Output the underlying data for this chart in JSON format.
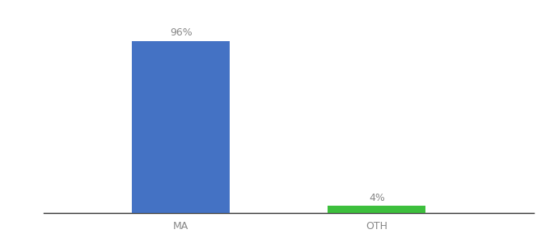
{
  "categories": [
    "MA",
    "OTH"
  ],
  "values": [
    96,
    4
  ],
  "bar_colors": [
    "#4472c4",
    "#3dbf3d"
  ],
  "bar_width": 0.5,
  "ylim": [
    0,
    108
  ],
  "label_fontsize": 9,
  "tick_fontsize": 9,
  "background_color": "#ffffff",
  "label_color": "#888888",
  "tick_color": "#888888",
  "positions": [
    1,
    2
  ],
  "xlim": [
    0.3,
    2.8
  ]
}
